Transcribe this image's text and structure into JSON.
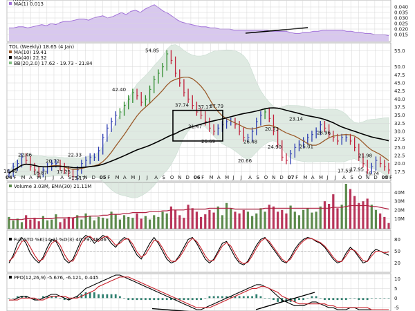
{
  "chart_data": [
    {
      "type": "area",
      "panel": "ratio",
      "title_partial": "(Weekly)",
      "legend": "MA(1) 0.013",
      "ylim": [
        0.01,
        0.045
      ],
      "y_ticks": [
        "0.040",
        "0.035",
        "0.030",
        "0.025",
        "0.020",
        "0.015"
      ],
      "colors": {
        "fill": "#d8c8ee",
        "line": "#a070d8",
        "trend": "#000000"
      },
      "values": [
        0.021,
        0.021,
        0.022,
        0.022,
        0.021,
        0.022,
        0.023,
        0.024,
        0.023,
        0.025,
        0.024,
        0.026,
        0.027,
        0.027,
        0.028,
        0.029,
        0.029,
        0.028,
        0.03,
        0.031,
        0.032,
        0.03,
        0.031,
        0.033,
        0.035,
        0.033,
        0.036,
        0.037,
        0.035,
        0.038,
        0.04,
        0.042,
        0.039,
        0.036,
        0.034,
        0.031,
        0.028,
        0.026,
        0.025,
        0.024,
        0.023,
        0.022,
        0.022,
        0.021,
        0.021,
        0.02,
        0.02,
        0.02,
        0.019,
        0.019,
        0.019,
        0.019,
        0.019,
        0.019,
        0.019,
        0.019,
        0.018,
        0.018,
        0.018,
        0.018,
        0.017,
        0.016,
        0.016,
        0.017,
        0.017,
        0.018,
        0.018,
        0.019,
        0.019,
        0.019,
        0.019,
        0.019,
        0.018,
        0.018,
        0.017,
        0.017,
        0.016,
        0.016,
        0.015,
        0.015,
        0.015,
        0.014
      ]
    },
    {
      "type": "line",
      "panel": "price",
      "title": "TOL (Weekly) 18.65 (4 Jan)",
      "legend": [
        "MA(10) 19.41",
        "MA(40) 22.32",
        "BB(20,2.0) 17.62 - 19.73 - 21.84"
      ],
      "ylim": [
        15,
        57
      ],
      "y_ticks": [
        "55.0",
        "50.0",
        "47.5",
        "45.0",
        "42.5",
        "40.0",
        "37.5",
        "35.0",
        "32.5",
        "30.0",
        "27.5",
        "25.0",
        "22.5",
        "20.0",
        "17.5"
      ],
      "x_ticks": [
        "04",
        "F",
        "M",
        "A",
        "M",
        "J",
        "J",
        "A",
        "S",
        "O",
        "N",
        "D",
        "05",
        "F",
        "M",
        "A",
        "M",
        "J",
        "J",
        "A",
        "S",
        "O",
        "N",
        "D",
        "06",
        "F",
        "M",
        "A",
        "M",
        "J",
        "J",
        "A",
        "S",
        "O",
        "N",
        "D",
        "07",
        "F",
        "M",
        "A",
        "M",
        "J",
        "J",
        "A",
        "S",
        "O",
        "N",
        "D",
        "08",
        "F"
      ],
      "annotations": [
        "16.46",
        "22.46",
        "16.87",
        "20.72",
        "17.25",
        "15.17",
        "22.33",
        "42.40",
        "54.85",
        "37.74",
        "31.47",
        "37.17",
        "26.69",
        "37.79",
        "20.66",
        "26.48",
        "20.73",
        "23.14",
        "24.90",
        "25.01",
        "28.96",
        "17.53",
        "21.98",
        "17.95",
        "16.74"
      ],
      "series": [
        {
          "name": "MA(10)",
          "color": "#9a5a2a"
        },
        {
          "name": "MA(40)",
          "color": "#000000"
        },
        {
          "name": "BB(20,2.0)",
          "color": "#c8dcd0"
        }
      ],
      "close": [
        17,
        19,
        20,
        22,
        21,
        19,
        18,
        17,
        18,
        19,
        20,
        20,
        19,
        18,
        17,
        16,
        18,
        20,
        21,
        22,
        22,
        24,
        28,
        31,
        33,
        35,
        36,
        38,
        40,
        42,
        41,
        39,
        40,
        43,
        46,
        48,
        50,
        54,
        52,
        48,
        45,
        42,
        40,
        38,
        36,
        35,
        33,
        31,
        30,
        31,
        32,
        33,
        33,
        32,
        30,
        28,
        28,
        30,
        33,
        35,
        36,
        34,
        30,
        26,
        22,
        21,
        23,
        25,
        26,
        27,
        28,
        29,
        30,
        32,
        31,
        29,
        28,
        27,
        28,
        28,
        27,
        25,
        22,
        20,
        18,
        19,
        21,
        20,
        19,
        18
      ]
    },
    {
      "type": "bar",
      "panel": "volume",
      "title": "Volume 3.03M, EMA(30) 21.11M",
      "ylim": [
        0,
        50
      ],
      "y_ticks": [
        "40M",
        "30M",
        "20M",
        "10M"
      ],
      "colors": {
        "up": "#5c8a4c",
        "down": "#b8355a",
        "ema": "#b02040"
      },
      "values": [
        12,
        8,
        10,
        6,
        14,
        9,
        11,
        7,
        13,
        8,
        9,
        15,
        6,
        10,
        12,
        11,
        14,
        9,
        16,
        13,
        8,
        12,
        11,
        10,
        18,
        15,
        9,
        14,
        12,
        11,
        16,
        10,
        13,
        9,
        14,
        12,
        18,
        16,
        24,
        20,
        14,
        11,
        26,
        22,
        18,
        12,
        15,
        20,
        17,
        24,
        14,
        28,
        22,
        18,
        16,
        20,
        18,
        13,
        16,
        22,
        18,
        26,
        24,
        18,
        20,
        16,
        25,
        18,
        14,
        20,
        22,
        17,
        18,
        24,
        30,
        27,
        38,
        22,
        26,
        50,
        44,
        36,
        28,
        30,
        33,
        26,
        20,
        16,
        12,
        5
      ],
      "ema": [
        9,
        9,
        9,
        9,
        10,
        10,
        10,
        10,
        10,
        10,
        10,
        11,
        11,
        11,
        11,
        11,
        12,
        12,
        12,
        13,
        13,
        13,
        14,
        14,
        15,
        15,
        15,
        16,
        16,
        17,
        17,
        17,
        17,
        18,
        18,
        18,
        19,
        19,
        20,
        20,
        20,
        20,
        21,
        21,
        21,
        21,
        21,
        22,
        22,
        22,
        22,
        22,
        22,
        21,
        21,
        21,
        21,
        21,
        21,
        21,
        22,
        22,
        22,
        22,
        22,
        22,
        22,
        22,
        22,
        22,
        22,
        22,
        22,
        22,
        22,
        22,
        23,
        23,
        23,
        24,
        25,
        25,
        25,
        25,
        25,
        24,
        24,
        23,
        22,
        21
      ]
    },
    {
      "type": "line",
      "panel": "stochastic",
      "title": "Full STO %K(14,3) %D(3) 40.79, 48.06",
      "ylim": [
        0,
        100
      ],
      "y_ticks": [
        "80",
        "50",
        "20"
      ],
      "series": [
        {
          "name": "%K",
          "color": "#000000",
          "values": [
            20,
            40,
            70,
            85,
            70,
            45,
            30,
            20,
            35,
            60,
            80,
            75,
            55,
            30,
            20,
            30,
            55,
            80,
            90,
            85,
            70,
            80,
            90,
            85,
            70,
            60,
            75,
            85,
            80,
            60,
            40,
            30,
            50,
            70,
            85,
            70,
            50,
            30,
            20,
            25,
            40,
            60,
            80,
            85,
            70,
            50,
            30,
            20,
            30,
            50,
            70,
            75,
            55,
            35,
            20,
            15,
            25,
            45,
            65,
            80,
            85,
            70,
            55,
            40,
            25,
            20,
            35,
            55,
            70,
            80,
            85,
            82,
            75,
            70,
            60,
            45,
            30,
            20,
            25,
            45,
            60,
            50,
            35,
            20,
            25,
            45,
            55,
            50,
            45,
            40
          ]
        },
        {
          "name": "%D",
          "color": "#c8202a",
          "values": [
            25,
            35,
            55,
            75,
            78,
            60,
            40,
            25,
            30,
            50,
            70,
            78,
            65,
            42,
            25,
            25,
            45,
            70,
            85,
            88,
            78,
            75,
            85,
            88,
            78,
            65,
            70,
            80,
            82,
            68,
            48,
            35,
            42,
            60,
            78,
            75,
            58,
            38,
            25,
            24,
            35,
            52,
            72,
            83,
            75,
            58,
            38,
            25,
            27,
            45,
            63,
            72,
            63,
            43,
            25,
            18,
            22,
            38,
            58,
            75,
            83,
            75,
            60,
            45,
            30,
            22,
            30,
            48,
            65,
            76,
            83,
            82,
            77,
            72,
            63,
            50,
            35,
            24,
            24,
            38,
            55,
            52,
            40,
            26,
            24,
            38,
            50,
            50,
            46,
            48
          ]
        }
      ]
    },
    {
      "type": "line",
      "panel": "ppo",
      "title": "PPO(12,26,9) -5.676, -6.121, 0.445",
      "ylim": [
        -6,
        12
      ],
      "y_ticks": [
        "10",
        "5",
        "0",
        "-5"
      ],
      "series": [
        {
          "name": "PPO",
          "color": "#000000",
          "values": [
            -1,
            -1,
            0,
            1,
            1,
            0,
            -1,
            -1,
            0,
            1,
            2,
            2,
            1,
            0,
            -1,
            0,
            1,
            3,
            5,
            6,
            7,
            8,
            9,
            10,
            11,
            12,
            12,
            11,
            10,
            9,
            8,
            7,
            6,
            5,
            4,
            3,
            2,
            1,
            0,
            -1,
            -2,
            -3,
            -4,
            -5,
            -6,
            -6,
            -5,
            -4,
            -3,
            -2,
            -1,
            0,
            1,
            2,
            3,
            4,
            5,
            6,
            7,
            7,
            6,
            5,
            3,
            1,
            -1,
            -2,
            -3,
            -4,
            -4,
            -4,
            -3,
            -2,
            -2,
            -3,
            -4,
            -5,
            -5,
            -6,
            -6,
            -6,
            -5,
            -5,
            -6,
            -6,
            -6,
            -6,
            -6,
            -6,
            -6,
            -6
          ]
        },
        {
          "name": "Signal",
          "color": "#c8202a",
          "values": [
            -1,
            -1,
            -1,
            0,
            0,
            0,
            0,
            -1,
            -1,
            0,
            1,
            1,
            1,
            1,
            0,
            0,
            0,
            1,
            2,
            3,
            4,
            6,
            7,
            8,
            9,
            10,
            11,
            11,
            11,
            10,
            9,
            8,
            7,
            6,
            5,
            4,
            3,
            2,
            1,
            0,
            -1,
            -2,
            -3,
            -4,
            -5,
            -5,
            -5,
            -5,
            -4,
            -3,
            -2,
            -1,
            0,
            1,
            2,
            3,
            4,
            5,
            5,
            6,
            6,
            5,
            4,
            3,
            1,
            0,
            -1,
            -2,
            -3,
            -3,
            -3,
            -3,
            -3,
            -3,
            -3,
            -4,
            -4,
            -5,
            -5,
            -5,
            -5,
            -5,
            -5,
            -5,
            -5,
            -6,
            -6,
            -6,
            -6,
            -6
          ]
        }
      ],
      "hist_color": "#2f7f6f"
    }
  ]
}
